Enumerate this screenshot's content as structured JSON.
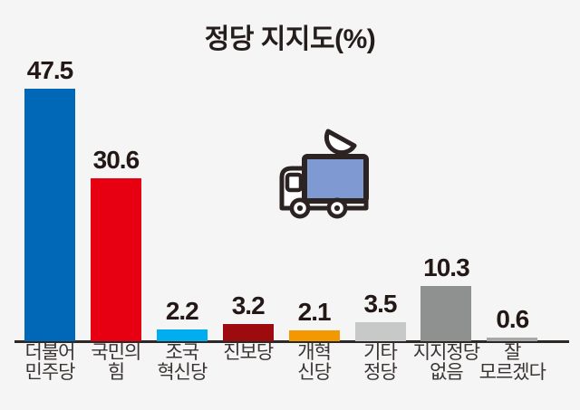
{
  "title": "정당 지지도(%)",
  "chart_data": {
    "type": "bar",
    "title": "정당 지지도(%)",
    "categories": [
      "더불어\n민주당",
      "국민의\n힘",
      "조국\n혁신당",
      "진보당",
      "개혁\n신당",
      "기타\n정당",
      "지지정당\n없음",
      "잘\n모르겠다"
    ],
    "values": [
      47.5,
      30.6,
      2.2,
      3.2,
      2.1,
      3.5,
      10.3,
      0.6
    ],
    "value_labels": [
      "47.5",
      "30.6",
      "2.2",
      "3.2",
      "2.1",
      "3.5",
      "10.3",
      "0.6"
    ],
    "bar_colors": [
      "#0068b7",
      "#e60012",
      "#00aeef",
      "#9e0b0f",
      "#f39800",
      "#c7c8c8",
      "#8f9090",
      "#a6a7a7"
    ],
    "xlabel": "",
    "ylabel": "",
    "ylim": [
      0,
      50
    ],
    "grid": false,
    "legend": "none",
    "annotations": [
      "broadcast-van-icon"
    ]
  },
  "icon": {
    "name": "broadcast-van-icon",
    "box_color": "#7f9ad2",
    "outline_color": "#2b2422",
    "body_color": "#ffffff"
  },
  "colors": {
    "background": "#f5f5f5",
    "axis": "#2c2826",
    "value_text": "#231815",
    "label_text": "#3a3433",
    "title_text": "#251d1b"
  }
}
